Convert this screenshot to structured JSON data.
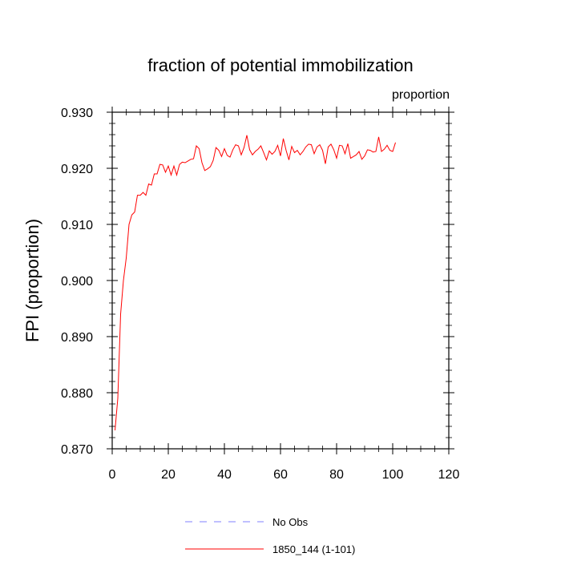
{
  "chart_data": {
    "type": "line",
    "title": "fraction of potential immobilization",
    "units_label": "proportion",
    "xlabel": "",
    "ylabel": "FPI  (proportion)",
    "xlim": [
      0,
      120
    ],
    "ylim": [
      0.87,
      0.93
    ],
    "xticks": [
      0,
      20,
      40,
      60,
      80,
      100,
      120
    ],
    "xtick_labels": [
      "0",
      "20",
      "40",
      "60",
      "80",
      "100",
      "120"
    ],
    "yticks": [
      0.87,
      0.88,
      0.89,
      0.9,
      0.91,
      0.92,
      0.93
    ],
    "ytick_labels": [
      "0.870",
      "0.880",
      "0.890",
      "0.900",
      "0.910",
      "0.920",
      "0.930"
    ],
    "grid": false,
    "legend_position": "bottom",
    "series": [
      {
        "name": "No Obs",
        "color": "#8080ff",
        "dash": "dashed",
        "x": [],
        "y": []
      },
      {
        "name": "1850_144 (1-101)",
        "color": "#ff0000",
        "dash": "solid",
        "x": [
          1,
          2,
          3,
          4,
          5,
          6,
          7,
          8,
          9,
          10,
          11,
          12,
          13,
          14,
          15,
          16,
          17,
          18,
          19,
          20,
          21,
          22,
          23,
          24,
          25,
          26,
          27,
          28,
          29,
          30,
          31,
          32,
          33,
          34,
          35,
          36,
          37,
          38,
          39,
          40,
          41,
          42,
          43,
          44,
          45,
          46,
          47,
          48,
          49,
          50,
          51,
          52,
          53,
          54,
          55,
          56,
          57,
          58,
          59,
          60,
          61,
          62,
          63,
          64,
          65,
          66,
          67,
          68,
          69,
          70,
          71,
          72,
          73,
          74,
          75,
          76,
          77,
          78,
          79,
          80,
          81,
          82,
          83,
          84,
          85,
          86,
          87,
          88,
          89,
          90,
          91,
          92,
          93,
          94,
          95,
          96,
          97,
          98,
          99,
          100,
          101
        ],
        "y": [
          0.8733,
          0.879,
          0.894,
          0.9,
          0.904,
          0.91,
          0.9117,
          0.9122,
          0.9152,
          0.9152,
          0.9157,
          0.9152,
          0.9172,
          0.917,
          0.919,
          0.919,
          0.9207,
          0.9206,
          0.9193,
          0.9204,
          0.9188,
          0.9204,
          0.9188,
          0.9207,
          0.9211,
          0.921,
          0.9213,
          0.9216,
          0.9217,
          0.924,
          0.9235,
          0.921,
          0.9196,
          0.9199,
          0.9203,
          0.9214,
          0.9237,
          0.9232,
          0.9221,
          0.9235,
          0.9223,
          0.922,
          0.9233,
          0.9242,
          0.924,
          0.9224,
          0.9237,
          0.9259,
          0.9233,
          0.9224,
          0.923,
          0.9234,
          0.924,
          0.9228,
          0.9215,
          0.9231,
          0.9225,
          0.923,
          0.9241,
          0.9222,
          0.9253,
          0.9232,
          0.9215,
          0.9239,
          0.9228,
          0.9232,
          0.9224,
          0.923,
          0.9238,
          0.9243,
          0.9242,
          0.9226,
          0.9238,
          0.9242,
          0.9232,
          0.9208,
          0.9238,
          0.9243,
          0.9233,
          0.9218,
          0.9241,
          0.924,
          0.9226,
          0.9244,
          0.9218,
          0.9221,
          0.9224,
          0.923,
          0.9216,
          0.9222,
          0.9233,
          0.9232,
          0.9229,
          0.923,
          0.9256,
          0.923,
          0.9234,
          0.9241,
          0.9232,
          0.923,
          0.9246
        ]
      }
    ]
  }
}
